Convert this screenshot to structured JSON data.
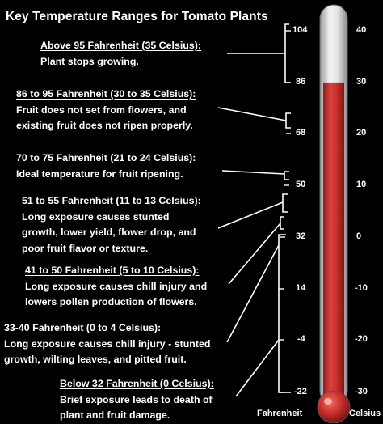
{
  "title": "Key Temperature Ranges for Tomato Plants",
  "ranges": [
    {
      "heading": "Above 95 Fahrenheit (35 Celsius):",
      "lines": [
        "Plant stops growing."
      ]
    },
    {
      "heading": "86 to 95 Fahrenheit (30 to 35 Celsius):",
      "lines": [
        "Fruit does not set from flowers, and",
        "existing fruit does not ripen properly."
      ]
    },
    {
      "heading": "70 to 75 Fahrenheit (21 to 24 Celsius):",
      "lines": [
        "Ideal temperature for fruit ripening."
      ]
    },
    {
      "heading": "51 to 55 Fahrenheit (11 to 13 Celsius):",
      "lines": [
        "Long exposure causes stunted",
        "growth, lower yield, flower drop, and",
        "poor fruit flavor or texture."
      ]
    },
    {
      "heading": "41 to 50 Fahrenheit (5 to 10 Celsius):",
      "lines": [
        "Long exposure causes chill injury and",
        "lowers pollen production of flowers."
      ]
    },
    {
      "heading": "33-40 Fahrenheit (0 to 4 Celsius):",
      "lines": [
        "Long exposure causes chill injury - stunted",
        "growth, wilting leaves, and pitted fruit."
      ]
    },
    {
      "heading": "Below 32 Fahrenheit (0 Celsius):",
      "lines": [
        "Brief exposure leads to death of",
        "plant and fruit damage."
      ]
    }
  ],
  "thermometer": {
    "fahrenheit_ticks": [
      "104",
      "86",
      "68",
      "50",
      "32",
      "14",
      "-4",
      "-22"
    ],
    "celsius_ticks": [
      "40",
      "30",
      "20",
      "10",
      "0",
      "-10",
      "-20",
      "-30"
    ],
    "fahrenheit_label": "Fahrenheit",
    "celsius_label": "Celsius",
    "fill_celsius": 30,
    "fluid_color": "#c9302c",
    "tube_color": "#d8d8d8"
  }
}
